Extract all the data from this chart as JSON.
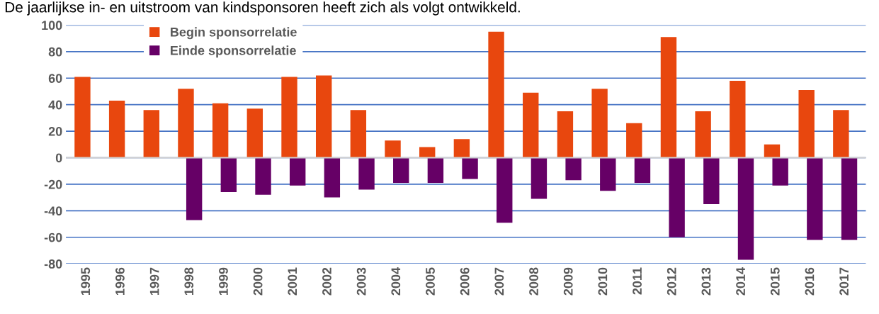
{
  "chart_data": {
    "type": "bar",
    "title": "De jaarlijkse in- en uitstroom van kindsponsoren heeft zich als volgt ontwikkeld.",
    "categories": [
      "1995",
      "1996",
      "1997",
      "1998",
      "1999",
      "2000",
      "2001",
      "2002",
      "2003",
      "2004",
      "2005",
      "2006",
      "2007",
      "2008",
      "2009",
      "2010",
      "2011",
      "2012",
      "2013",
      "2014",
      "2015",
      "2016",
      "2017"
    ],
    "series": [
      {
        "name": "Begin sponsorrelatie",
        "color": "#e8470e",
        "values": [
          61,
          43,
          36,
          52,
          41,
          37,
          61,
          62,
          36,
          13,
          8,
          14,
          95,
          49,
          35,
          52,
          26,
          91,
          35,
          58,
          10,
          51,
          36
        ]
      },
      {
        "name": "Einde sponsorrelatie",
        "color": "#660066",
        "values": [
          null,
          null,
          null,
          -47,
          -26,
          -28,
          -21,
          -30,
          -24,
          -19,
          -19,
          -16,
          -49,
          -31,
          -17,
          -25,
          -19,
          -60,
          -35,
          -77,
          -21,
          -62,
          -62
        ]
      }
    ],
    "ylim": [
      -80,
      100
    ],
    "yticks": [
      -80,
      -60,
      -40,
      -20,
      0,
      20,
      40,
      60,
      80,
      100
    ],
    "grid": "y",
    "legend": "top left"
  }
}
